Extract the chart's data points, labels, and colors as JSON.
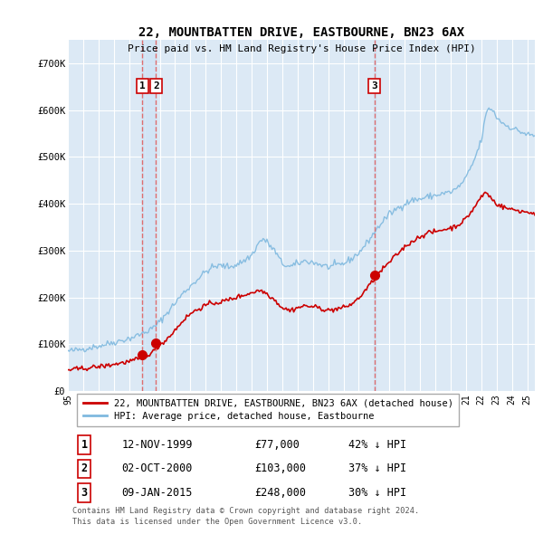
{
  "title": "22, MOUNTBATTEN DRIVE, EASTBOURNE, BN23 6AX",
  "subtitle": "Price paid vs. HM Land Registry's House Price Index (HPI)",
  "background_color": "#ffffff",
  "plot_bg_color": "#dce9f5",
  "grid_color": "#ffffff",
  "sale_color": "#cc0000",
  "hpi_color": "#7fb9df",
  "annotation_box_color": "#cc0000",
  "vline_color": "#e06060",
  "band_color": "#d0e4f5",
  "legend_sale_label": "22, MOUNTBATTEN DRIVE, EASTBOURNE, BN23 6AX (detached house)",
  "legend_hpi_label": "HPI: Average price, detached house, Eastbourne",
  "transactions": [
    {
      "num": 1,
      "date_str": "12-NOV-1999",
      "date_x": 1999.87,
      "price": 77000,
      "pct": "42%"
    },
    {
      "num": 2,
      "date_str": "02-OCT-2000",
      "date_x": 2000.75,
      "price": 103000,
      "pct": "37%"
    },
    {
      "num": 3,
      "date_str": "09-JAN-2015",
      "date_x": 2015.03,
      "price": 248000,
      "pct": "30%"
    }
  ],
  "footer_line1": "Contains HM Land Registry data © Crown copyright and database right 2024.",
  "footer_line2": "This data is licensed under the Open Government Licence v3.0.",
  "ylim": [
    0,
    750000
  ],
  "yticks": [
    0,
    100000,
    200000,
    300000,
    400000,
    500000,
    600000,
    700000
  ],
  "ytick_labels": [
    "£0",
    "£100K",
    "£200K",
    "£300K",
    "£400K",
    "£500K",
    "£600K",
    "£700K"
  ],
  "xmin": 1995.0,
  "xmax": 2025.5,
  "hpi_anchors": [
    [
      1995.0,
      85000
    ],
    [
      1995.5,
      87000
    ],
    [
      1996.0,
      90000
    ],
    [
      1996.5,
      93000
    ],
    [
      1997.0,
      96000
    ],
    [
      1997.5,
      100000
    ],
    [
      1998.0,
      104000
    ],
    [
      1998.5,
      108000
    ],
    [
      1999.0,
      112000
    ],
    [
      1999.5,
      118000
    ],
    [
      2000.0,
      125000
    ],
    [
      2000.5,
      133000
    ],
    [
      2001.0,
      148000
    ],
    [
      2001.5,
      168000
    ],
    [
      2002.0,
      188000
    ],
    [
      2002.5,
      208000
    ],
    [
      2003.0,
      224000
    ],
    [
      2003.5,
      240000
    ],
    [
      2004.0,
      255000
    ],
    [
      2004.5,
      265000
    ],
    [
      2005.0,
      268000
    ],
    [
      2005.5,
      265000
    ],
    [
      2006.0,
      270000
    ],
    [
      2006.5,
      278000
    ],
    [
      2007.0,
      290000
    ],
    [
      2007.5,
      318000
    ],
    [
      2007.75,
      325000
    ],
    [
      2008.0,
      318000
    ],
    [
      2008.5,
      300000
    ],
    [
      2009.0,
      272000
    ],
    [
      2009.5,
      265000
    ],
    [
      2010.0,
      272000
    ],
    [
      2010.5,
      278000
    ],
    [
      2011.0,
      275000
    ],
    [
      2011.5,
      270000
    ],
    [
      2012.0,
      265000
    ],
    [
      2012.5,
      268000
    ],
    [
      2013.0,
      272000
    ],
    [
      2013.5,
      282000
    ],
    [
      2014.0,
      295000
    ],
    [
      2014.5,
      315000
    ],
    [
      2015.0,
      338000
    ],
    [
      2015.5,
      360000
    ],
    [
      2016.0,
      378000
    ],
    [
      2016.5,
      390000
    ],
    [
      2017.0,
      400000
    ],
    [
      2017.5,
      408000
    ],
    [
      2018.0,
      410000
    ],
    [
      2018.5,
      415000
    ],
    [
      2019.0,
      418000
    ],
    [
      2019.5,
      422000
    ],
    [
      2020.0,
      425000
    ],
    [
      2020.5,
      435000
    ],
    [
      2021.0,
      455000
    ],
    [
      2021.5,
      490000
    ],
    [
      2022.0,
      535000
    ],
    [
      2022.3,
      590000
    ],
    [
      2022.5,
      605000
    ],
    [
      2022.75,
      600000
    ],
    [
      2023.0,
      585000
    ],
    [
      2023.5,
      570000
    ],
    [
      2024.0,
      562000
    ],
    [
      2024.5,
      555000
    ],
    [
      2025.0,
      548000
    ],
    [
      2025.5,
      545000
    ]
  ],
  "sale_anchors": [
    [
      1995.0,
      45000
    ],
    [
      1995.5,
      46500
    ],
    [
      1996.0,
      48000
    ],
    [
      1996.5,
      50000
    ],
    [
      1997.0,
      52000
    ],
    [
      1997.5,
      54000
    ],
    [
      1998.0,
      57000
    ],
    [
      1998.5,
      60000
    ],
    [
      1999.0,
      63000
    ],
    [
      1999.5,
      67000
    ],
    [
      1999.87,
      72000
    ],
    [
      2000.0,
      75000
    ],
    [
      2000.5,
      82000
    ],
    [
      2000.75,
      90000
    ],
    [
      2001.0,
      98000
    ],
    [
      2001.5,
      112000
    ],
    [
      2002.0,
      130000
    ],
    [
      2002.5,
      150000
    ],
    [
      2003.0,
      165000
    ],
    [
      2003.5,
      175000
    ],
    [
      2004.0,
      183000
    ],
    [
      2004.5,
      188000
    ],
    [
      2005.0,
      190000
    ],
    [
      2005.5,
      195000
    ],
    [
      2006.0,
      200000
    ],
    [
      2006.5,
      205000
    ],
    [
      2007.0,
      210000
    ],
    [
      2007.5,
      215000
    ],
    [
      2007.75,
      213000
    ],
    [
      2008.0,
      208000
    ],
    [
      2008.5,
      195000
    ],
    [
      2009.0,
      178000
    ],
    [
      2009.5,
      172000
    ],
    [
      2010.0,
      178000
    ],
    [
      2010.5,
      182000
    ],
    [
      2011.0,
      180000
    ],
    [
      2011.5,
      177000
    ],
    [
      2012.0,
      172000
    ],
    [
      2012.5,
      175000
    ],
    [
      2013.0,
      178000
    ],
    [
      2013.5,
      185000
    ],
    [
      2014.0,
      198000
    ],
    [
      2014.5,
      218000
    ],
    [
      2015.0,
      238000
    ],
    [
      2015.03,
      245000
    ],
    [
      2015.5,
      258000
    ],
    [
      2016.0,
      275000
    ],
    [
      2016.5,
      292000
    ],
    [
      2017.0,
      308000
    ],
    [
      2017.5,
      320000
    ],
    [
      2018.0,
      330000
    ],
    [
      2018.5,
      338000
    ],
    [
      2019.0,
      340000
    ],
    [
      2019.5,
      345000
    ],
    [
      2020.0,
      348000
    ],
    [
      2020.5,
      355000
    ],
    [
      2021.0,
      368000
    ],
    [
      2021.5,
      390000
    ],
    [
      2022.0,
      415000
    ],
    [
      2022.3,
      425000
    ],
    [
      2022.5,
      418000
    ],
    [
      2022.75,
      408000
    ],
    [
      2023.0,
      400000
    ],
    [
      2023.5,
      392000
    ],
    [
      2024.0,
      388000
    ],
    [
      2024.5,
      385000
    ],
    [
      2025.0,
      382000
    ],
    [
      2025.5,
      380000
    ]
  ]
}
